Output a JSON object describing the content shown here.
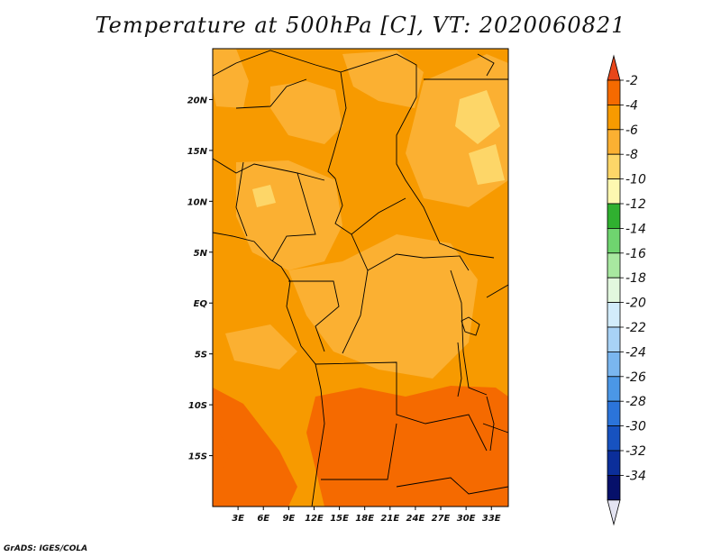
{
  "title": "Temperature at 500hPa [C], VT: 2020060821",
  "credit": "GrADS: IGES/COLA",
  "map": {
    "lon_range": [
      0,
      35
    ],
    "lat_range": [
      -20,
      25
    ],
    "lon_ticks": [
      "3E",
      "6E",
      "9E",
      "12E",
      "15E",
      "18E",
      "21E",
      "24E",
      "27E",
      "30E",
      "33E"
    ],
    "lat_ticks": [
      "20N",
      "15N",
      "10N",
      "5N",
      "EQ",
      "5S",
      "10S",
      "15S"
    ]
  },
  "colorbar": {
    "labels": [
      "-2",
      "-4",
      "-6",
      "-8",
      "-10",
      "-12",
      "-14",
      "-16",
      "-18",
      "-20",
      "-22",
      "-24",
      "-26",
      "-28",
      "-30",
      "-32",
      "-34"
    ],
    "colors": [
      "#e8461a",
      "#f56a00",
      "#f79a00",
      "#fbb032",
      "#fdd668",
      "#fdf8b0",
      "#30b030",
      "#6fd46f",
      "#a8e8a0",
      "#e2f8de",
      "#d2ecfb",
      "#a8d2f6",
      "#7ab6ef",
      "#4b97e6",
      "#2b74da",
      "#1752c0",
      "#0b2e9a",
      "#06106a",
      "#e4e4f2"
    ]
  },
  "regions_colors": {
    "warm_minus4": "#f56a00",
    "minus6": "#f79a00",
    "minus8": "#fbb032",
    "minus10": "#fdd668"
  }
}
